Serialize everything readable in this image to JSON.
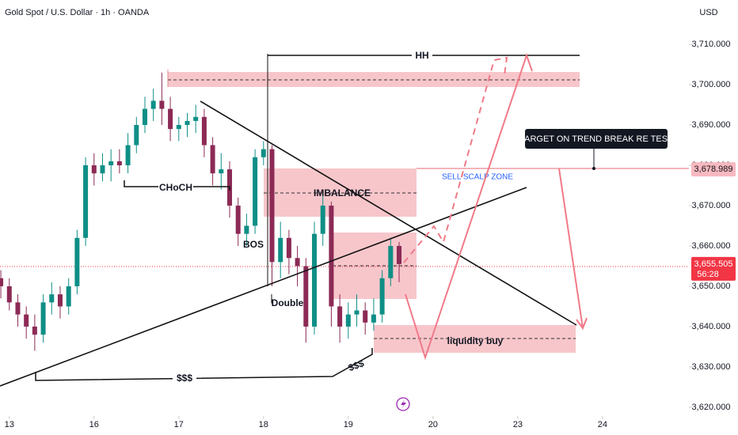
{
  "chart_data": {
    "type": "candlestick",
    "title": "Gold Spot / U.S. Dollar · 1h · OANDA",
    "y_label": "USD",
    "x": [
      -0.1,
      0,
      0.1,
      0.2,
      0.3,
      0.4,
      0.5,
      0.6,
      0.7,
      0.8,
      0.9,
      1.0,
      1.1,
      1.2,
      1.3,
      1.4,
      1.5,
      1.6,
      1.7,
      1.8,
      1.9,
      2.0,
      2.1,
      2.2,
      2.3,
      2.4,
      2.5,
      2.6,
      2.7,
      2.8,
      2.9,
      3.0,
      3.1,
      3.2,
      3.3,
      3.4,
      3.5,
      3.6,
      3.7,
      3.8,
      3.9,
      4.0,
      4.1,
      4.2,
      4.3,
      4.4,
      4.5,
      4.6
    ],
    "open": [
      3652,
      3650,
      3646,
      3643,
      3640,
      3638,
      3646,
      3648,
      3645,
      3650,
      3662,
      3680,
      3678,
      3680,
      3681,
      3680,
      3685,
      3690,
      3694,
      3696,
      3694,
      3689,
      3690,
      3691,
      3692,
      3685,
      3678,
      3679,
      3670,
      3663,
      3665,
      3682,
      3684,
      3656,
      3662,
      3657,
      3655,
      3640,
      3663,
      3670,
      3645,
      3640,
      3643,
      3644,
      3641,
      3643,
      3652,
      3660
    ],
    "high": [
      3654,
      3652,
      3648,
      3645,
      3643,
      3648,
      3651,
      3650,
      3652,
      3664,
      3682,
      3683,
      3683,
      3684,
      3684,
      3688,
      3692,
      3697,
      3699,
      3703,
      3697,
      3692,
      3693,
      3695,
      3694,
      3687,
      3683,
      3681,
      3672,
      3668,
      3684,
      3686,
      3685,
      3666,
      3664,
      3660,
      3657,
      3666,
      3673,
      3671,
      3648,
      3646,
      3648,
      3646,
      3647,
      3654,
      3662,
      3661
    ],
    "low": [
      3647,
      3644,
      3640,
      3637,
      3634,
      3636,
      3643,
      3642,
      3643,
      3648,
      3660,
      3675,
      3676,
      3676,
      3678,
      3678,
      3683,
      3688,
      3691,
      3690,
      3686,
      3686,
      3687,
      3688,
      3682,
      3675,
      3674,
      3667,
      3660,
      3660,
      3663,
      3680,
      3650,
      3652,
      3653,
      3650,
      3636,
      3638,
      3660,
      3640,
      3636,
      3637,
      3640,
      3638,
      3639,
      3641,
      3650,
      3651
    ],
    "close": [
      3650,
      3646,
      3643,
      3640,
      3638,
      3646,
      3648,
      3645,
      3650,
      3662,
      3680,
      3678,
      3680,
      3681,
      3680,
      3685,
      3690,
      3694,
      3696,
      3694,
      3689,
      3690,
      3691,
      3692,
      3685,
      3678,
      3679,
      3670,
      3663,
      3665,
      3682,
      3684,
      3656,
      3662,
      3657,
      3655,
      3640,
      3663,
      3670,
      3645,
      3640,
      3643,
      3644,
      3641,
      3643,
      3652,
      3660,
      3655.505
    ],
    "up_color": "#0e8f86",
    "down_color": "#8c2a55",
    "xlim": [
      -0.11,
      8.02
    ],
    "ylim": [
      3618.6,
      3721
    ],
    "xticks": [
      {
        "value": 0,
        "label": "13"
      },
      {
        "value": 1,
        "label": "16"
      },
      {
        "value": 2,
        "label": "17"
      },
      {
        "value": 3,
        "label": "18"
      },
      {
        "value": 4,
        "label": "19"
      },
      {
        "value": 5,
        "label": "20"
      },
      {
        "value": 6,
        "label": "23"
      },
      {
        "value": 7,
        "label": "24"
      }
    ],
    "yticks": [
      {
        "value": 3620,
        "label": "3,620.000"
      },
      {
        "value": 3630,
        "label": "3,630.000"
      },
      {
        "value": 3640,
        "label": "3,640.000"
      },
      {
        "value": 3650,
        "label": "3,650.000"
      },
      {
        "value": 3660,
        "label": "3,660.000"
      },
      {
        "value": 3670,
        "label": "3,670.000"
      },
      {
        "value": 3680,
        "label": "3,680.000"
      },
      {
        "value": 3690,
        "label": "3,690.000"
      },
      {
        "value": 3700,
        "label": "3,700.000"
      },
      {
        "value": 3710,
        "label": "3,710.000"
      }
    ],
    "grid": false,
    "price_tags": [
      {
        "value": 3678.989,
        "label": "3,678.989",
        "color": "#f7b9c1",
        "text_color": "#111111"
      },
      {
        "value": 3655.505,
        "label": "3,655.505",
        "color": "#f23645",
        "text_color": "#ffffff"
      }
    ],
    "countdown": "56:28",
    "annotations": [
      "HH",
      "CHoCH",
      "BOS",
      "IMBALANCE",
      "Double",
      "$$$",
      "$$$",
      "SELL SCALP ZONE",
      "TARGET ON TREND BREAK RE TEST",
      "liquidity buy"
    ]
  }
}
